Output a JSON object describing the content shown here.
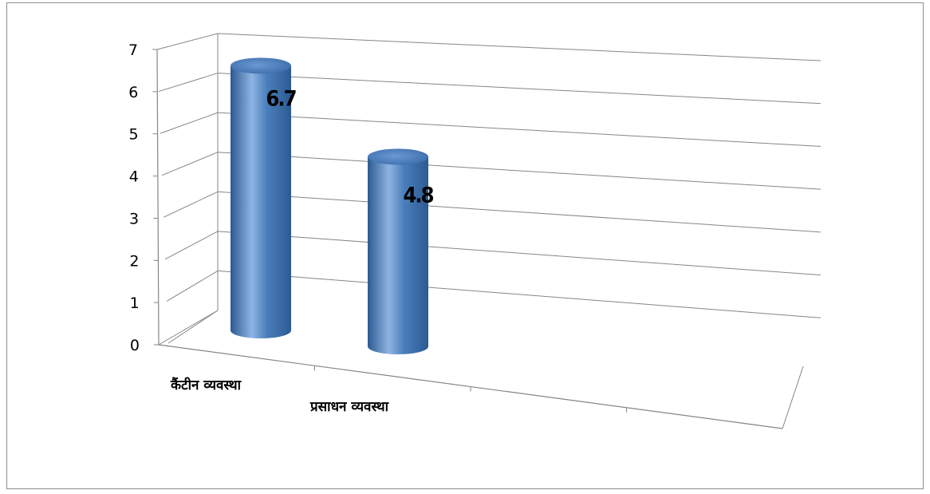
{
  "chart_data": {
    "type": "bar",
    "style": "3d-cylinder",
    "title": "",
    "xlabel": "",
    "ylabel": "",
    "categories": [
      "कैंटीन व्यवस्था",
      "प्रसाधन व्यवस्था"
    ],
    "values": [
      6.7,
      4.8
    ],
    "data_labels": [
      "6.7",
      "4.8"
    ],
    "ylim": [
      0,
      7
    ],
    "yticks": [
      "0",
      "1",
      "2",
      "3",
      "4",
      "5",
      "6",
      "7"
    ],
    "grid": true,
    "legend": "none",
    "bar_color": "#4a7ebb",
    "bar_color_light": "#8fb4e3",
    "bar_color_dark": "#2d5a92",
    "gridline_color": "#868686"
  }
}
